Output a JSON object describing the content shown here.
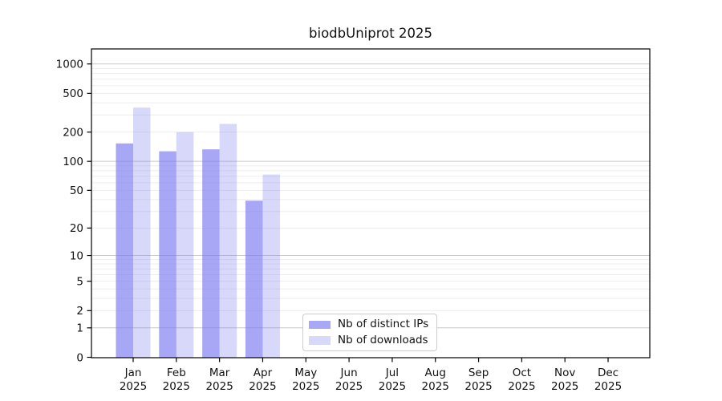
{
  "chart_data": {
    "type": "bar",
    "title": "biodbUniprot 2025",
    "x_categories": [
      "Jan 2025",
      "Feb 2025",
      "Mar 2025",
      "Apr 2025",
      "May 2025",
      "Jun 2025",
      "Jul 2025",
      "Aug 2025",
      "Sep 2025",
      "Oct 2025",
      "Nov 2025",
      "Dec 2025"
    ],
    "series": [
      {
        "name": "Nb of distinct IPs",
        "color": "#7878f0",
        "opacity": 0.65,
        "values": [
          153,
          127,
          133,
          39,
          0,
          0,
          0,
          0,
          0,
          0,
          0,
          0
        ]
      },
      {
        "name": "Nb of downloads",
        "color": "#7878f0",
        "opacity": 0.29,
        "values": [
          357,
          200,
          243,
          73,
          0,
          0,
          0,
          0,
          0,
          0,
          0,
          0
        ]
      }
    ],
    "y_scale": "log1p",
    "y_tick_values": [
      1000,
      500,
      200,
      100,
      50,
      20,
      10,
      5,
      2,
      1,
      0
    ],
    "y_tick_labels": [
      "1000",
      "500",
      "200",
      "100",
      "50",
      "20",
      "10",
      "5",
      "2",
      "1",
      "0"
    ],
    "y_major_gridlines": [
      1,
      10,
      100,
      1000
    ],
    "y_minor_gridlines": [
      2,
      3,
      4,
      5,
      6,
      7,
      8,
      9,
      20,
      30,
      40,
      50,
      60,
      70,
      80,
      90,
      200,
      300,
      400,
      500,
      600,
      700,
      800,
      900
    ],
    "ylim": [
      0,
      1426
    ],
    "legend_position": "lower center",
    "colors": {
      "bar_fill_base": "#7878f0",
      "bar_dark_rendered": "#a8a8f6",
      "bar_light_rendered": "#d8d8fa",
      "grid_major": "#c9c9c9",
      "grid_minor": "#ededed",
      "axis": "#000000",
      "text": "#111111",
      "legend_border": "#cccccc"
    },
    "grid": true
  }
}
